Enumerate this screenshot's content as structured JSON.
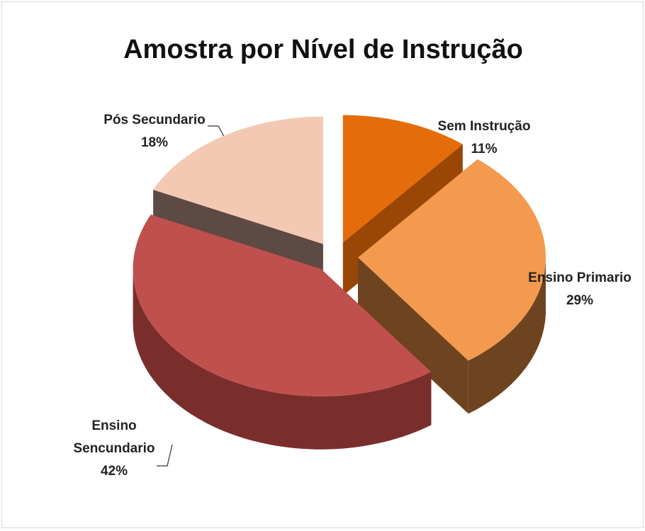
{
  "chart_data": {
    "type": "pie",
    "title": "Amostra por Nível de Instrução",
    "categories": [
      "Sem Instrução",
      "Ensino Primario",
      "Ensino Sencundario",
      "Pós Secundario"
    ],
    "values": [
      11,
      29,
      42,
      18
    ],
    "value_labels": [
      "11%",
      "29%",
      "42%",
      "18%"
    ],
    "colors": [
      "#e46c0a",
      "#f39a4e",
      "#c0504d",
      "#f4c9b3"
    ],
    "side_colors": [
      "#9a4606",
      "#6e4320",
      "#7a2e2c",
      "#5e4a44"
    ]
  }
}
